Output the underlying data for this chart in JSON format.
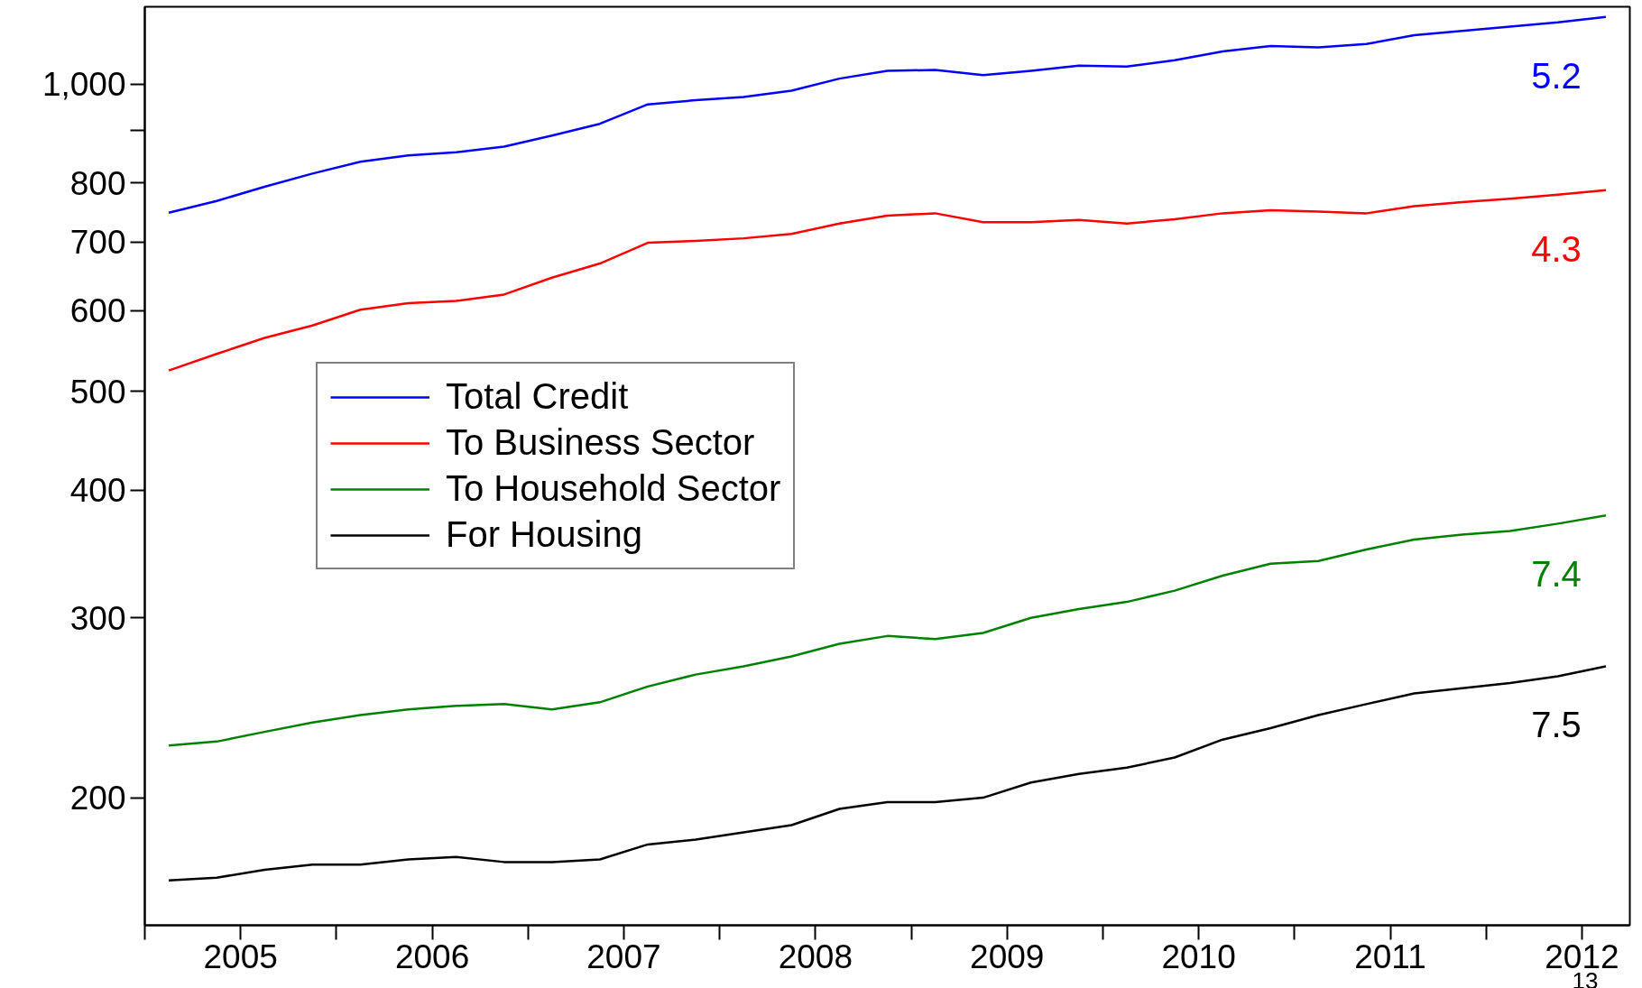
{
  "chart_data": {
    "type": "line",
    "log": "y",
    "ylim": [
      150,
      1190
    ],
    "xlim": [
      2005,
      2012.75
    ],
    "yticks": [
      200,
      300,
      400,
      500,
      600,
      700,
      800,
      {
        "value": 900,
        "label": null
      },
      {
        "value": 1000,
        "label": "1,000"
      }
    ],
    "xticks": [
      {
        "value": 2005,
        "label": null
      },
      {
        "value": 2005.5,
        "label": "2005"
      },
      {
        "value": 2006,
        "label": null
      },
      {
        "value": 2006.5,
        "label": "2006"
      },
      {
        "value": 2007,
        "label": null
      },
      {
        "value": 2007.5,
        "label": "2007"
      },
      {
        "value": 2008,
        "label": null
      },
      {
        "value": 2008.5,
        "label": "2008"
      },
      {
        "value": 2009,
        "label": null
      },
      {
        "value": 2009.5,
        "label": "2009"
      },
      {
        "value": 2010,
        "label": null
      },
      {
        "value": 2010.5,
        "label": "2010"
      },
      {
        "value": 2011,
        "label": null
      },
      {
        "value": 2011.5,
        "label": "2011"
      },
      {
        "value": 2012,
        "label": null
      },
      {
        "value": 2012.5,
        "label": "2012"
      }
    ],
    "x": [
      2005.125,
      2005.375,
      2005.625,
      2005.875,
      2006.125,
      2006.375,
      2006.625,
      2006.875,
      2007.125,
      2007.375,
      2007.625,
      2007.875,
      2008.125,
      2008.375,
      2008.625,
      2008.875,
      2009.125,
      2009.375,
      2009.625,
      2009.875,
      2010.125,
      2010.375,
      2010.625,
      2010.875,
      2011.125,
      2011.375,
      2011.625,
      2011.875,
      2012.125,
      2012.375,
      2012.625
    ],
    "series": [
      {
        "name": "Total Credit",
        "color": "#0000ff",
        "values": [
          748,
          768,
          793,
          817,
          839,
          851,
          857,
          868,
          890,
          914,
          955,
          964,
          971,
          985,
          1012,
          1030,
          1032,
          1020,
          1030,
          1042,
          1040,
          1055,
          1076,
          1089,
          1086,
          1094,
          1116,
          1127,
          1138,
          1149,
          1163
        ]
      },
      {
        "name": "To Business Sector",
        "color": "#ff0000",
        "values": [
          524,
          544,
          564,
          580,
          601,
          610,
          613,
          622,
          646,
          667,
          699,
          702,
          706,
          713,
          730,
          743,
          747,
          732,
          732,
          736,
          730,
          737,
          747,
          752,
          750,
          747,
          759,
          766,
          772,
          779,
          787
        ]
      },
      {
        "name": "To Household Sector",
        "color": "#008000",
        "values": [
          225,
          227,
          232,
          237,
          241,
          244,
          246,
          247,
          244,
          248,
          257,
          264,
          269,
          275,
          283,
          288,
          286,
          290,
          300,
          306,
          311,
          319,
          330,
          339,
          341,
          350,
          358,
          362,
          365,
          371,
          378
        ]
      },
      {
        "name": "For Housing",
        "color": "#000000",
        "values": [
          166,
          167,
          170,
          172,
          172,
          174,
          175,
          173,
          173,
          174,
          180,
          182,
          185,
          188,
          195,
          198,
          198,
          200,
          207,
          211,
          214,
          219,
          228,
          234,
          241,
          247,
          253,
          256,
          259,
          263,
          269
        ]
      }
    ],
    "annotations": [
      "5.2",
      "4.3",
      "7.4",
      "7.5",
      "13"
    ],
    "legend": "center left",
    "grid": false,
    "line_style": "solid",
    "marker": "none"
  }
}
